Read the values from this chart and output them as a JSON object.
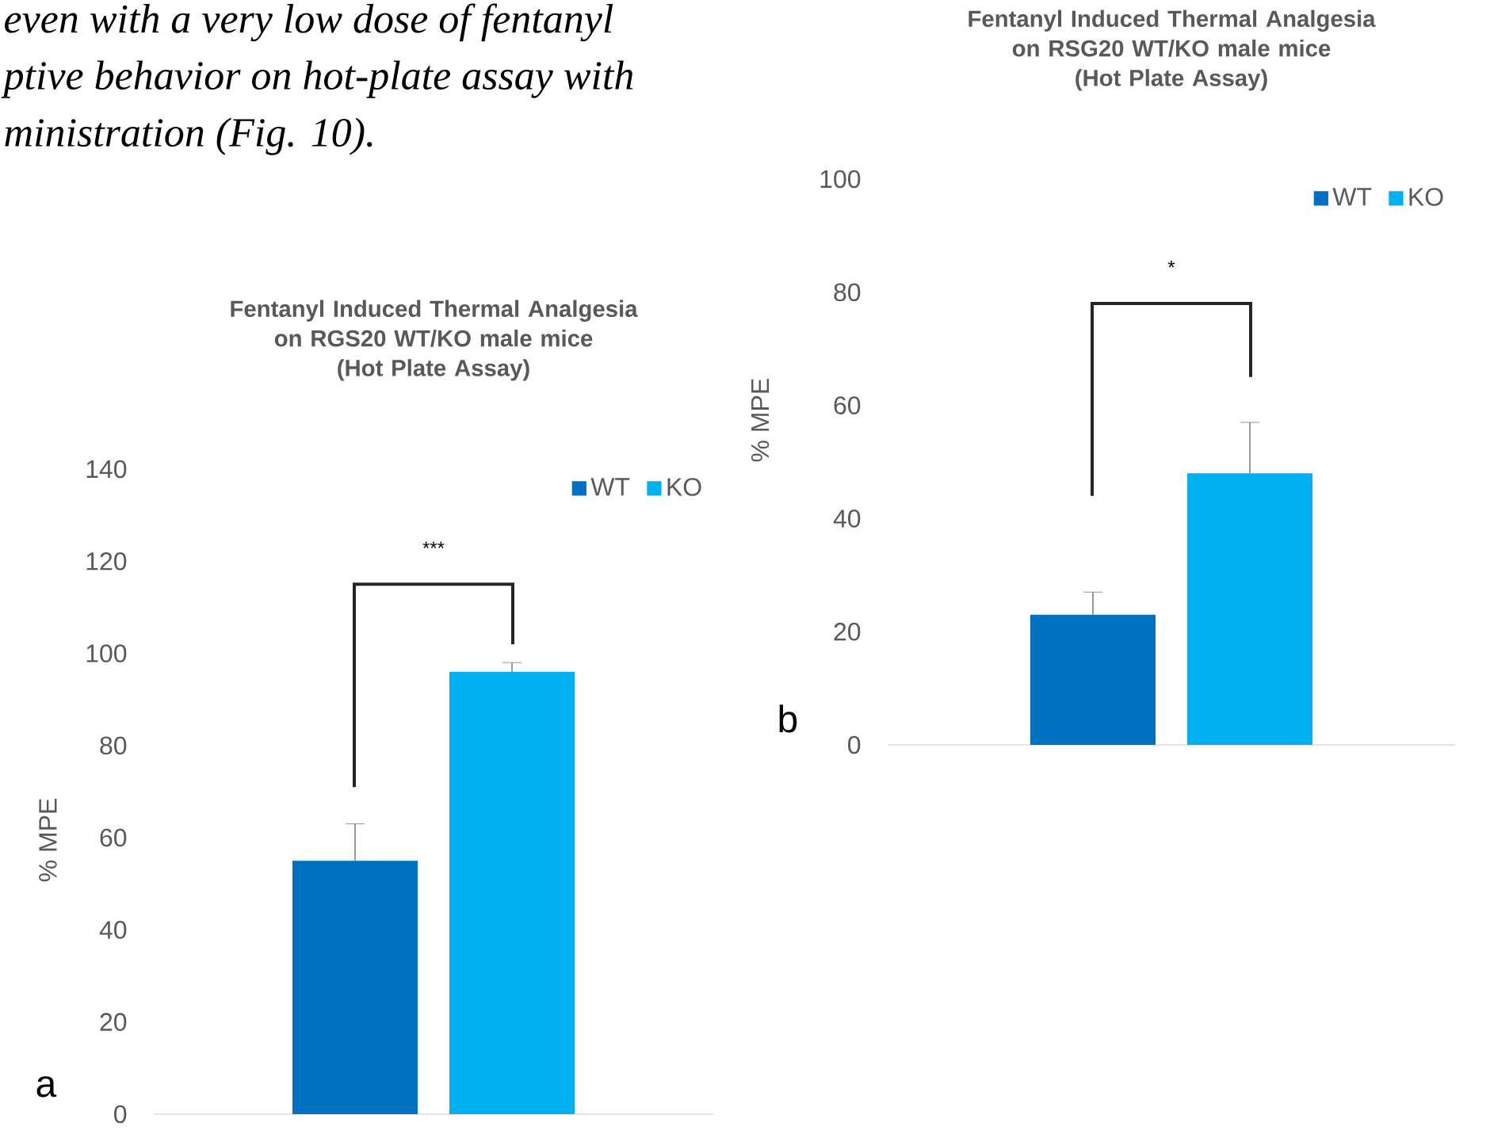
{
  "chart_data": [
    {
      "type": "other",
      "annotations": [
        "even with a very low dose of fentanyl",
        "ptive behavior on hot-plate assay with",
        "ministration (Fig. 10)."
      ]
    },
    {
      "type": "bar",
      "title": "Fentanyl Induced Thermal Analgesia on RGS20 WT/KO male mice",
      "subtitle": "(Hot Plate Assay)",
      "ylabel": "% MPE",
      "categories": [
        null
      ],
      "series": [
        {
          "name": "WT",
          "color": "#0070c0",
          "values": [
            55
          ],
          "errors": [
            8
          ]
        },
        {
          "name": "KO",
          "color": "#00b0f0",
          "values": [
            96
          ],
          "errors": [
            2
          ]
        }
      ],
      "ylim": [
        0,
        140
      ],
      "yticks": [
        0,
        20,
        40,
        60,
        80,
        100,
        120,
        140
      ],
      "legend": "top right",
      "annotations": [
        "***",
        "a"
      ]
    },
    {
      "type": "bar",
      "title": "Fentanyl Induced Thermal Analgesia on RSG20 WT/KO male mice",
      "subtitle": "(Hot Plate Assay)",
      "ylabel": "% MPE",
      "categories": [
        null
      ],
      "series": [
        {
          "name": "WT",
          "color": "#0070c0",
          "values": [
            23
          ],
          "errors": [
            4
          ]
        },
        {
          "name": "KO",
          "color": "#00b0f0",
          "values": [
            48
          ],
          "errors": [
            9
          ]
        }
      ],
      "ylim": [
        0,
        100
      ],
      "yticks": [
        0,
        20,
        40,
        60,
        80,
        100
      ],
      "legend": "top right",
      "annotations": [
        "*",
        "b"
      ]
    }
  ]
}
